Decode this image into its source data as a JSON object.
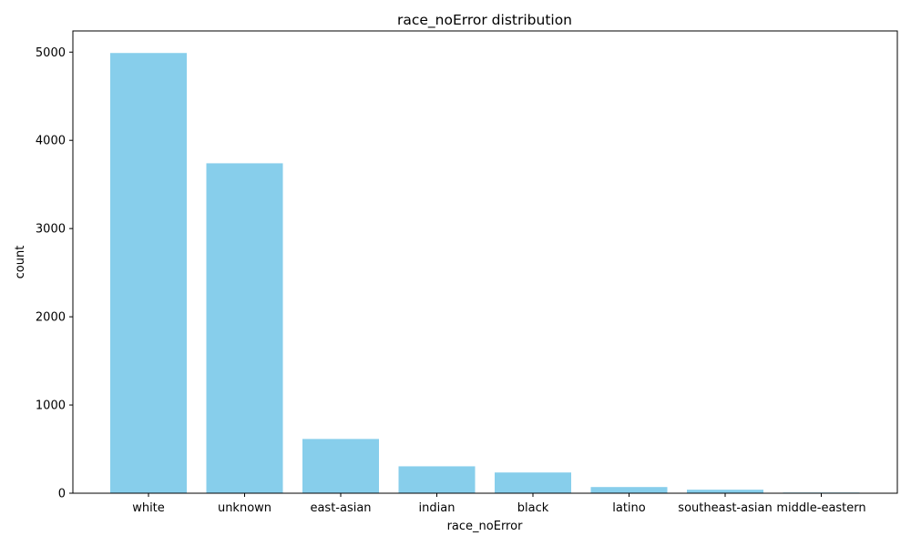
{
  "chart_data": {
    "type": "bar",
    "title": "race_noError distribution",
    "xlabel": "race_noError",
    "ylabel": "count",
    "categories": [
      "white",
      "unknown",
      "east-asian",
      "indian",
      "black",
      "latino",
      "southeast-asian",
      "middle-eastern"
    ],
    "values": [
      4990,
      3740,
      615,
      305,
      235,
      70,
      40,
      8
    ],
    "ylim": [
      0,
      5240
    ],
    "yticks": [
      0,
      1000,
      2000,
      3000,
      4000,
      5000
    ],
    "bar_color": "#87CEEB",
    "grid": false,
    "legend": "none"
  }
}
